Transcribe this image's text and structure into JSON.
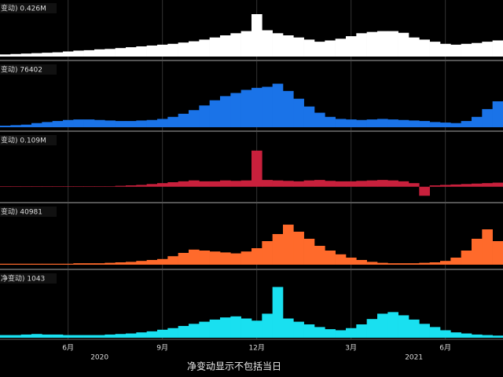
{
  "chart_data": [
    {
      "type": "bar",
      "label": "变动) 0.426M",
      "color": "#ffffff",
      "ylim": [
        0,
        100
      ],
      "values": [
        5,
        6,
        7,
        8,
        9,
        10,
        12,
        14,
        15,
        17,
        18,
        20,
        22,
        24,
        26,
        28,
        30,
        33,
        36,
        40,
        45,
        50,
        55,
        60,
        100,
        62,
        55,
        50,
        45,
        40,
        35,
        38,
        42,
        48,
        55,
        58,
        60,
        60,
        56,
        45,
        40,
        35,
        30,
        28,
        30,
        32,
        35,
        38
      ]
    },
    {
      "type": "bar",
      "label": "变动) 76402",
      "color": "#1a73e8",
      "ylim": [
        0,
        100
      ],
      "values": [
        3,
        4,
        5,
        8,
        10,
        12,
        14,
        15,
        15,
        14,
        13,
        12,
        12,
        13,
        14,
        16,
        20,
        26,
        33,
        42,
        52,
        60,
        66,
        72,
        76,
        78,
        84,
        70,
        55,
        40,
        28,
        20,
        16,
        15,
        14,
        15,
        16,
        15,
        14,
        13,
        12,
        10,
        9,
        8,
        12,
        20,
        35,
        50
      ]
    },
    {
      "type": "bar",
      "label": "变动) 0.109M",
      "color": "#c8203c",
      "ylim": [
        -30,
        90
      ],
      "values": [
        1,
        1,
        1,
        1,
        1,
        1,
        1,
        1,
        1,
        1,
        1,
        2,
        3,
        4,
        6,
        8,
        10,
        12,
        14,
        12,
        12,
        14,
        13,
        14,
        80,
        15,
        14,
        13,
        12,
        14,
        15,
        13,
        12,
        12,
        13,
        14,
        15,
        14,
        12,
        8,
        -20,
        3,
        4,
        5,
        6,
        7,
        8,
        9
      ]
    },
    {
      "type": "bar",
      "label": "变动) 40981",
      "color": "#ff6a2b",
      "ylim": [
        0,
        100
      ],
      "values": [
        2,
        2,
        2,
        2,
        2,
        2,
        2,
        3,
        3,
        3,
        4,
        5,
        6,
        8,
        10,
        12,
        18,
        25,
        32,
        30,
        28,
        26,
        24,
        28,
        35,
        50,
        65,
        85,
        70,
        55,
        40,
        30,
        22,
        15,
        10,
        6,
        4,
        3,
        3,
        3,
        4,
        5,
        8,
        15,
        30,
        55,
        75,
        50
      ]
    },
    {
      "type": "bar",
      "label": "净变动) 1043",
      "color": "#19e0f0",
      "ylim": [
        0,
        100
      ],
      "values": [
        5,
        5,
        6,
        7,
        6,
        6,
        5,
        5,
        5,
        5,
        6,
        7,
        8,
        10,
        12,
        15,
        18,
        22,
        26,
        30,
        34,
        38,
        40,
        36,
        32,
        45,
        95,
        36,
        30,
        25,
        20,
        16,
        14,
        18,
        25,
        35,
        45,
        48,
        42,
        34,
        26,
        20,
        14,
        10,
        8,
        6,
        5,
        4
      ]
    }
  ],
  "x_axis": {
    "categories": [
      null,
      null,
      null,
      null,
      null,
      null,
      "6月",
      null,
      null,
      null,
      null,
      null,
      null,
      null,
      null,
      "9月",
      null,
      null,
      null,
      null,
      null,
      null,
      null,
      null,
      "12月",
      null,
      null,
      null,
      null,
      null,
      null,
      null,
      null,
      "3月",
      null,
      null,
      null,
      null,
      null,
      null,
      null,
      null,
      "6月",
      null,
      null,
      null,
      null,
      null
    ],
    "years": [
      null,
      null,
      null,
      null,
      null,
      null,
      null,
      null,
      null,
      "2020",
      null,
      null,
      null,
      null,
      null,
      null,
      null,
      null,
      null,
      null,
      null,
      null,
      null,
      null,
      null,
      null,
      null,
      null,
      null,
      null,
      null,
      null,
      null,
      null,
      null,
      null,
      null,
      null,
      null,
      "2021",
      null,
      null,
      null,
      null,
      null,
      null,
      null,
      null
    ]
  },
  "footer": "净变动显示不包括当日"
}
